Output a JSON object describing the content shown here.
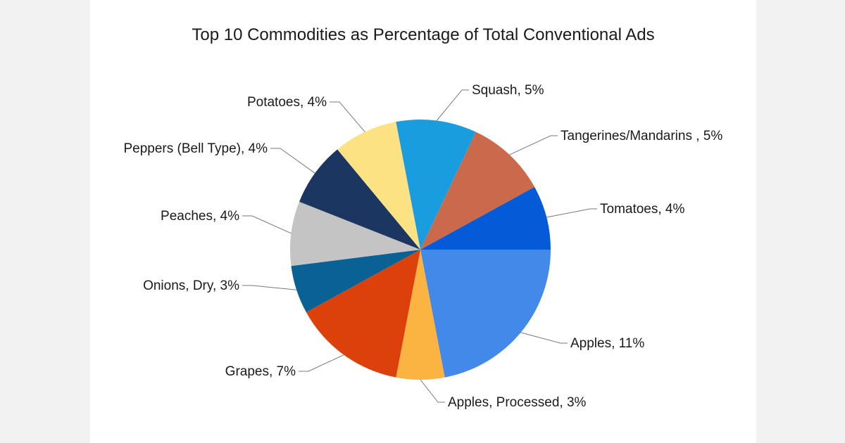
{
  "chart_data": {
    "type": "pie",
    "title": "Top 10 Commodities as Percentage of Total Conventional Ads",
    "start_angle_deg": 0,
    "direction": "clockwise",
    "slices": [
      {
        "label": "Apples, 11%",
        "name": "Apples",
        "value": 11,
        "color": "#4389ea"
      },
      {
        "label": "Apples, Processed, 3%",
        "name": "Apples, Processed",
        "value": 3,
        "color": "#fbb442"
      },
      {
        "label": "Grapes, 7%",
        "name": "Grapes",
        "value": 7,
        "color": "#dc410b"
      },
      {
        "label": "Onions, Dry, 3%",
        "name": "Onions, Dry",
        "value": 3,
        "color": "#0a6194"
      },
      {
        "label": "Peaches, 4%",
        "name": "Peaches",
        "value": 4,
        "color": "#c4c4c4"
      },
      {
        "label": "Peppers (Bell Type), 4%",
        "name": "Peppers (Bell Type)",
        "value": 4,
        "color": "#1b3761"
      },
      {
        "label": "Potatoes, 4%",
        "name": "Potatoes",
        "value": 4,
        "color": "#fde283"
      },
      {
        "label": "Squash, 5%",
        "name": "Squash",
        "value": 5,
        "color": "#1a9ddf"
      },
      {
        "label": "Tangerines/Mandarins , 5%",
        "name": "Tangerines/Mandarins",
        "value": 5,
        "color": "#cb6a4a"
      },
      {
        "label": "Tomatoes, 4%",
        "name": "Tomatoes",
        "value": 4,
        "color": "#055ad7"
      }
    ]
  }
}
